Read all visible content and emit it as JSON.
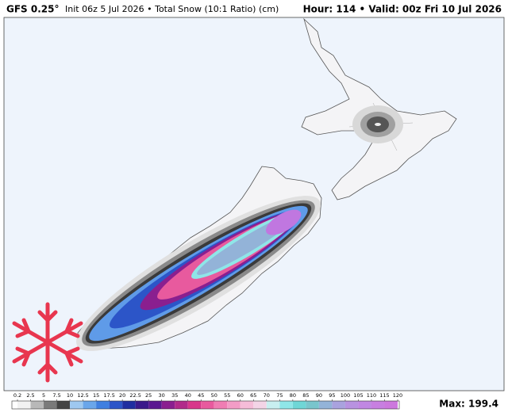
{
  "header": {
    "model": "GFS 0.25°",
    "description": "Init 06z 5 Jul 2026 • Total Snow (10:1 Ratio) (cm)",
    "valid": "Hour: 114 • Valid: 00z Fri 10 Jul 2026"
  },
  "colorbar": {
    "ticks": [
      0.2,
      2.5,
      5,
      7.5,
      10,
      12.5,
      15,
      17.5,
      20,
      22.5,
      25,
      30,
      35,
      40,
      45,
      50,
      55,
      60,
      65,
      70,
      75,
      80,
      85,
      90,
      95,
      100,
      105,
      110,
      115,
      120
    ],
    "colors": [
      "#f2f2f2",
      "#b8b8b8",
      "#7a7a7a",
      "#444444",
      "#9ec8f0",
      "#6aa6ea",
      "#3f7fe0",
      "#2c55c8",
      "#1f2ea0",
      "#3a1a8a",
      "#5a1890",
      "#8a1f8f",
      "#b12a8a",
      "#d8368a",
      "#e85a9e",
      "#ef7db3",
      "#f29cc6",
      "#f5bcd8",
      "#f3d4e6",
      "#c8eff0",
      "#8fe6e8",
      "#6fd6d6",
      "#79c5cc",
      "#93b3d8",
      "#a9a2de",
      "#b892e0",
      "#c087e2",
      "#c77fe0",
      "#cc78dd"
    ]
  },
  "max_label": "Max: 199.4"
}
